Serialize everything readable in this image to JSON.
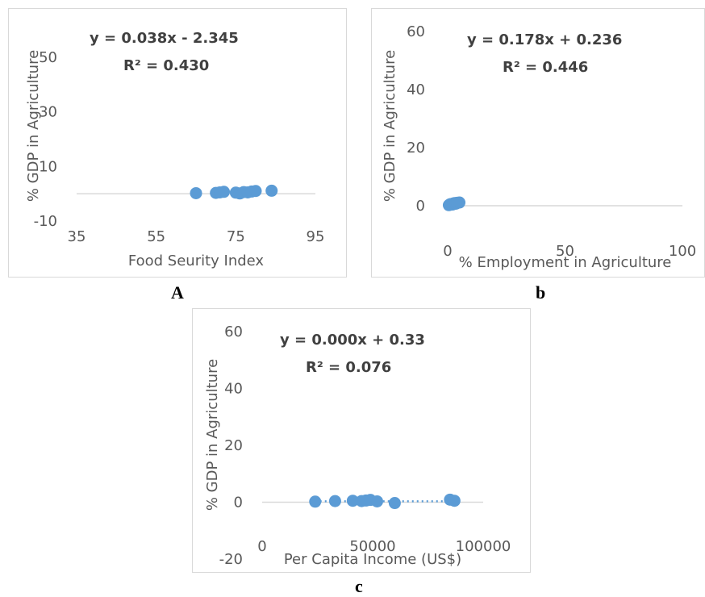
{
  "colors": {
    "point": "#5b9bd5",
    "axis": "#d9d9d9",
    "text": "#595959"
  },
  "captions": {
    "a": "A",
    "b": "b",
    "c": "c"
  },
  "chart_data": [
    {
      "type": "scatter",
      "id": "a",
      "xlabel": "Food Seurity Index",
      "ylabel": "% GDP in Agriculture",
      "xlim": [
        35,
        95
      ],
      "ylim": [
        -10,
        60
      ],
      "xticks": [
        35,
        55,
        75,
        95
      ],
      "yticks": [
        -10,
        10,
        30,
        50
      ],
      "trendline": {
        "equation": "y = 0.038x - 2.345",
        "r2": "R² = 0.430"
      },
      "points": [
        [
          65,
          0.2
        ],
        [
          70,
          0.3
        ],
        [
          71,
          0.5
        ],
        [
          72,
          0.7
        ],
        [
          75,
          0.4
        ],
        [
          76,
          0.1
        ],
        [
          77,
          0.6
        ],
        [
          78,
          0.5
        ],
        [
          79,
          0.8
        ],
        [
          80,
          1.0
        ],
        [
          84,
          1.1
        ]
      ]
    },
    {
      "type": "scatter",
      "id": "b",
      "xlabel": "% Employment in Agriculture",
      "ylabel": "% GDP in Agriculture",
      "xlim": [
        0,
        100
      ],
      "ylim": [
        0,
        60
      ],
      "xticks": [
        0,
        50,
        100
      ],
      "yticks": [
        0,
        20,
        40,
        60
      ],
      "trendline": {
        "equation": "y = 0.178x + 0.236",
        "r2": "R² = 0.446"
      },
      "points": [
        [
          0.5,
          0.2
        ],
        [
          1,
          0.5
        ],
        [
          1.5,
          0.6
        ],
        [
          2,
          0.4
        ],
        [
          2.5,
          0.8
        ],
        [
          3,
          0.9
        ],
        [
          3.5,
          0.7
        ],
        [
          4,
          1.0
        ],
        [
          5,
          1.1
        ]
      ]
    },
    {
      "type": "scatter",
      "id": "c",
      "xlabel": "Per Capita Income (US$)",
      "ylabel": "% GDP in Agriculture",
      "xlim": [
        0,
        100000
      ],
      "ylim": [
        -20,
        60
      ],
      "xticks": [
        0,
        50000,
        100000
      ],
      "yticks": [
        -20,
        0,
        20,
        40,
        60
      ],
      "trendline": {
        "equation": "y = 0.000x + 0.33",
        "r2": "R² = 0.076"
      },
      "points": [
        [
          24000,
          0.2
        ],
        [
          33000,
          0.4
        ],
        [
          41000,
          0.5
        ],
        [
          45000,
          0.4
        ],
        [
          47000,
          0.6
        ],
        [
          49000,
          0.8
        ],
        [
          52000,
          0.3
        ],
        [
          60000,
          -0.3
        ],
        [
          85000,
          0.9
        ],
        [
          87000,
          0.5
        ]
      ]
    }
  ]
}
